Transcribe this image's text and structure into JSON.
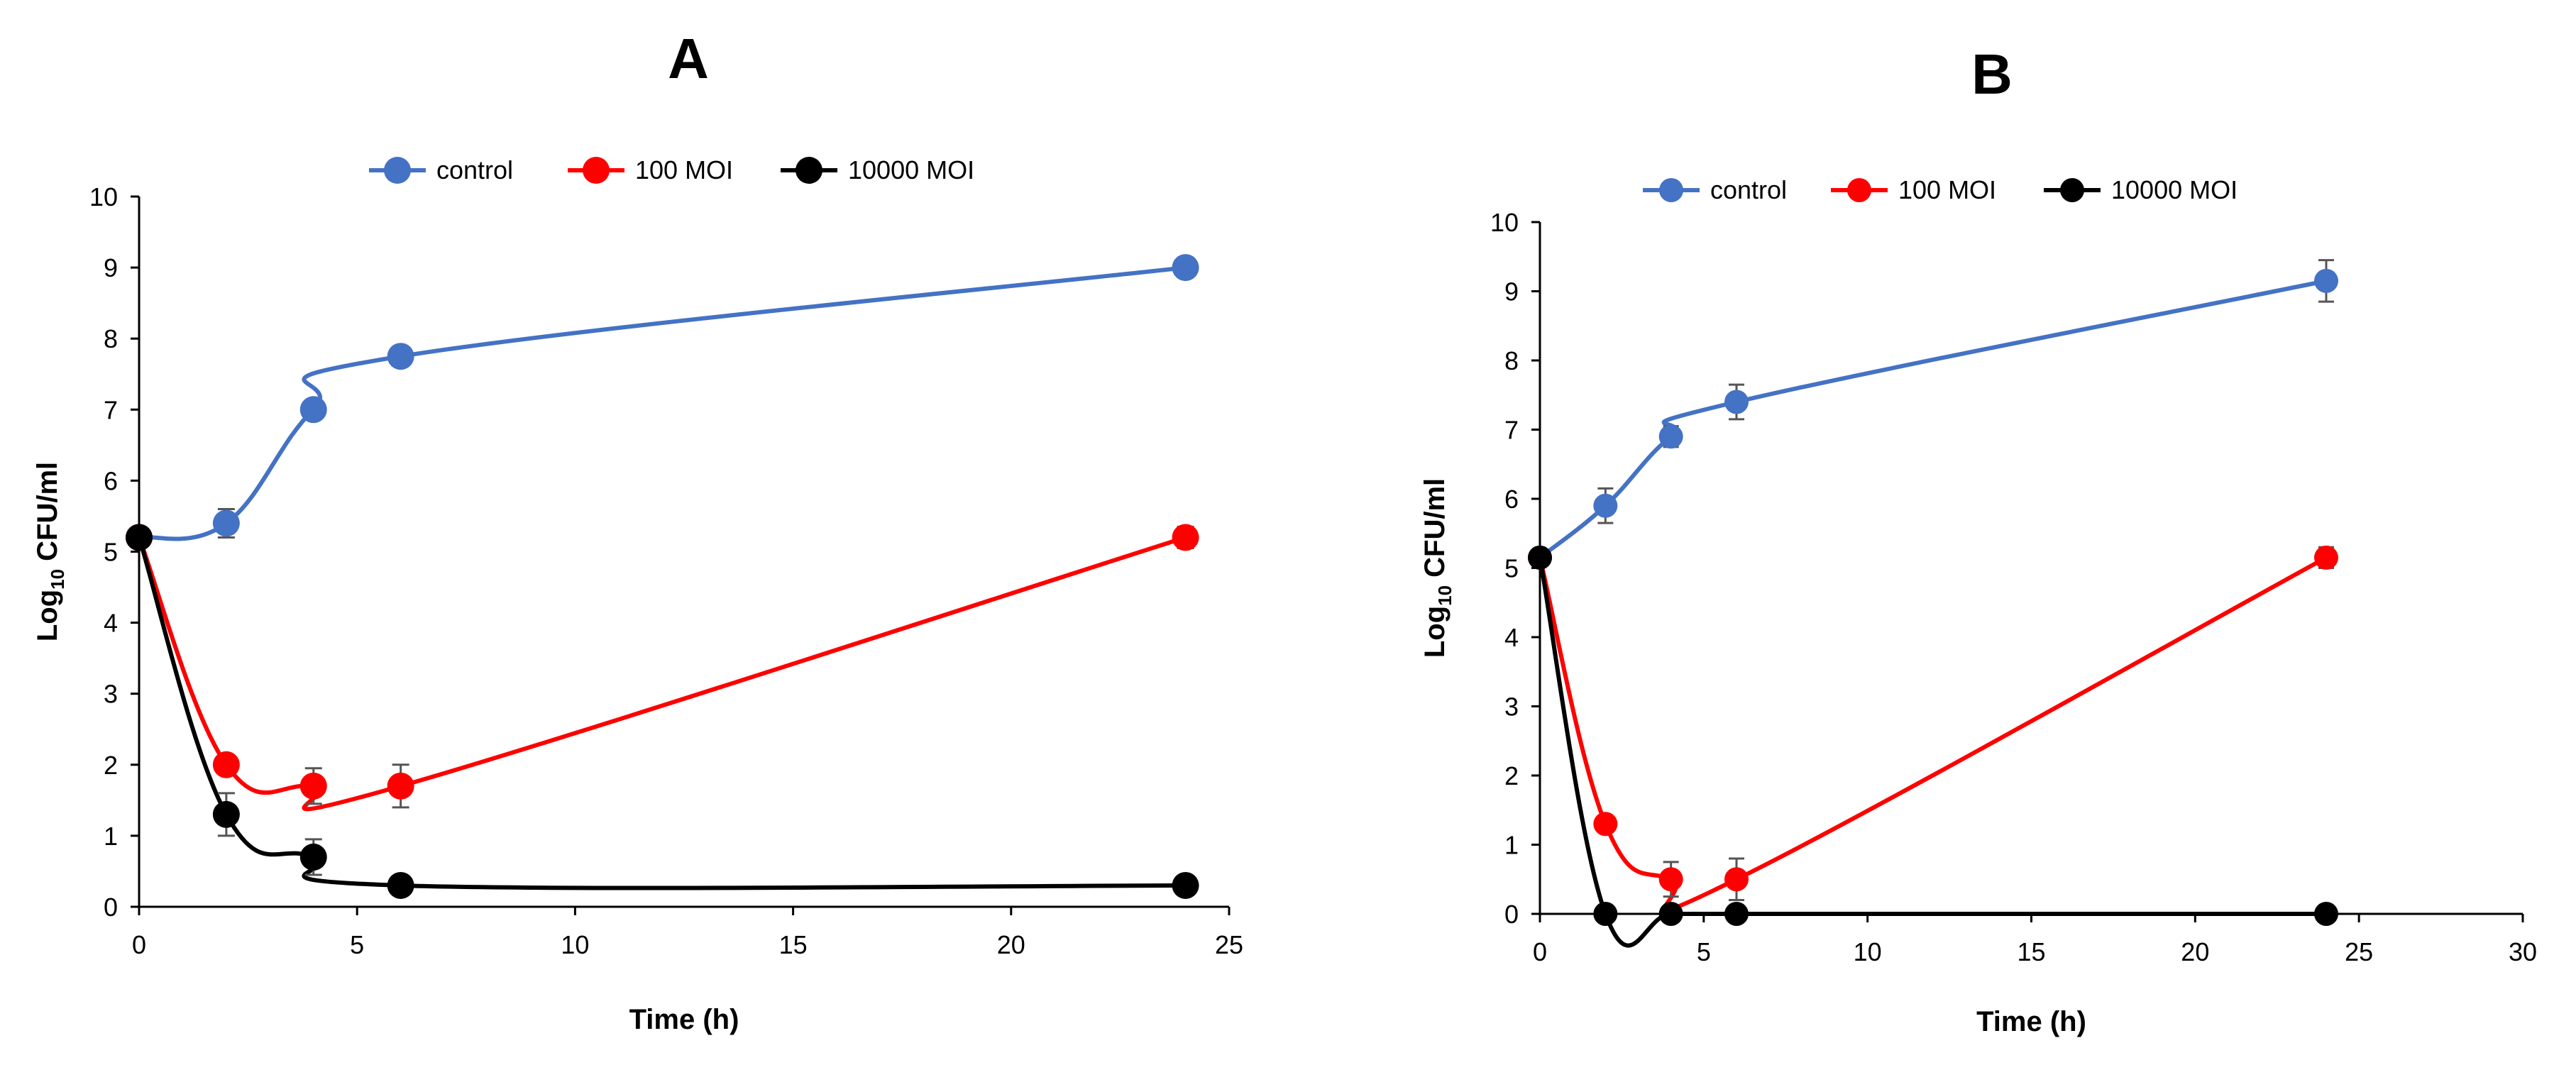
{
  "chart_data": [
    {
      "type": "line",
      "title": "A",
      "xlabel": "Time (h)",
      "ylabel_base": "Log",
      "ylabel_sub": "10",
      "ylabel_unit": "CFU/ml",
      "xlim": [
        0,
        25
      ],
      "ylim": [
        0,
        10
      ],
      "xticks": [
        0,
        5,
        10,
        15,
        20,
        25
      ],
      "yticks": [
        0,
        1,
        2,
        3,
        4,
        5,
        6,
        7,
        8,
        9,
        10
      ],
      "legend_position": "top",
      "x": [
        0,
        2,
        4,
        6,
        24
      ],
      "series": [
        {
          "name": "control",
          "color": "#4472C4",
          "values": [
            5.2,
            5.4,
            7.0,
            7.75,
            9.0
          ],
          "errors": [
            0.1,
            0.2,
            0.1,
            0.1,
            0.1
          ]
        },
        {
          "name": "100 MOI",
          "color": "#FF0000",
          "values": [
            5.2,
            2.0,
            1.7,
            1.7,
            5.2
          ],
          "errors": [
            0.1,
            0.1,
            0.25,
            0.3,
            0.15
          ]
        },
        {
          "name": "10000 MOI",
          "color": "#000000",
          "values": [
            5.2,
            1.3,
            0.7,
            0.3,
            0.3
          ],
          "errors": [
            0.1,
            0.3,
            0.25,
            0.05,
            0.05
          ]
        }
      ]
    },
    {
      "type": "line",
      "title": "B",
      "xlabel": "Time (h)",
      "ylabel_base": "Log",
      "ylabel_sub": "10",
      "ylabel_unit": "CFU/ml",
      "xlim": [
        0,
        30
      ],
      "ylim": [
        0,
        10
      ],
      "xticks": [
        0,
        5,
        10,
        15,
        20,
        25,
        30
      ],
      "yticks": [
        0,
        1,
        2,
        3,
        4,
        5,
        6,
        7,
        8,
        9,
        10
      ],
      "legend_position": "top",
      "x": [
        0,
        2,
        4,
        6,
        24
      ],
      "series": [
        {
          "name": "control",
          "color": "#4472C4",
          "values": [
            5.15,
            5.9,
            6.9,
            7.4,
            9.15
          ],
          "errors": [
            0.1,
            0.25,
            0.15,
            0.25,
            0.3
          ]
        },
        {
          "name": "100 MOI",
          "color": "#FF0000",
          "values": [
            5.15,
            1.3,
            0.5,
            0.5,
            5.15
          ],
          "errors": [
            0.1,
            0.1,
            0.25,
            0.3,
            0.15
          ]
        },
        {
          "name": "10000 MOI",
          "color": "#000000",
          "values": [
            5.15,
            0.0,
            0.0,
            0.0,
            0.0
          ],
          "errors": [
            0.1,
            0,
            0,
            0,
            0
          ]
        }
      ]
    }
  ]
}
